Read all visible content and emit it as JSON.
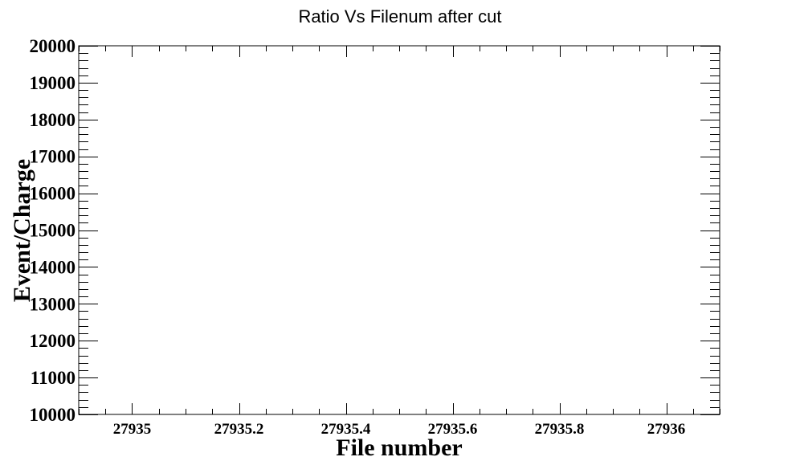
{
  "chart_data": {
    "type": "scatter",
    "title": "Ratio Vs Filenum after cut",
    "xlabel": "File number",
    "ylabel": "Event/Charge",
    "xlim": [
      27934.9,
      27936.1
    ],
    "ylim": [
      10000,
      20000
    ],
    "x_ticks": [
      27935,
      27935.2,
      27935.4,
      27935.6,
      27935.8,
      27936
    ],
    "x_tick_labels": [
      "27935",
      "27935.2",
      "27935.4",
      "27935.6",
      "27935.8",
      "27936"
    ],
    "y_ticks": [
      10000,
      11000,
      12000,
      13000,
      14000,
      15000,
      16000,
      17000,
      18000,
      19000,
      20000
    ],
    "y_tick_labels": [
      "10000",
      "11000",
      "12000",
      "13000",
      "14000",
      "15000",
      "16000",
      "17000",
      "18000",
      "19000",
      "20000"
    ],
    "series": [
      {
        "x": [],
        "y": []
      }
    ],
    "grid": false,
    "legend": "none"
  }
}
